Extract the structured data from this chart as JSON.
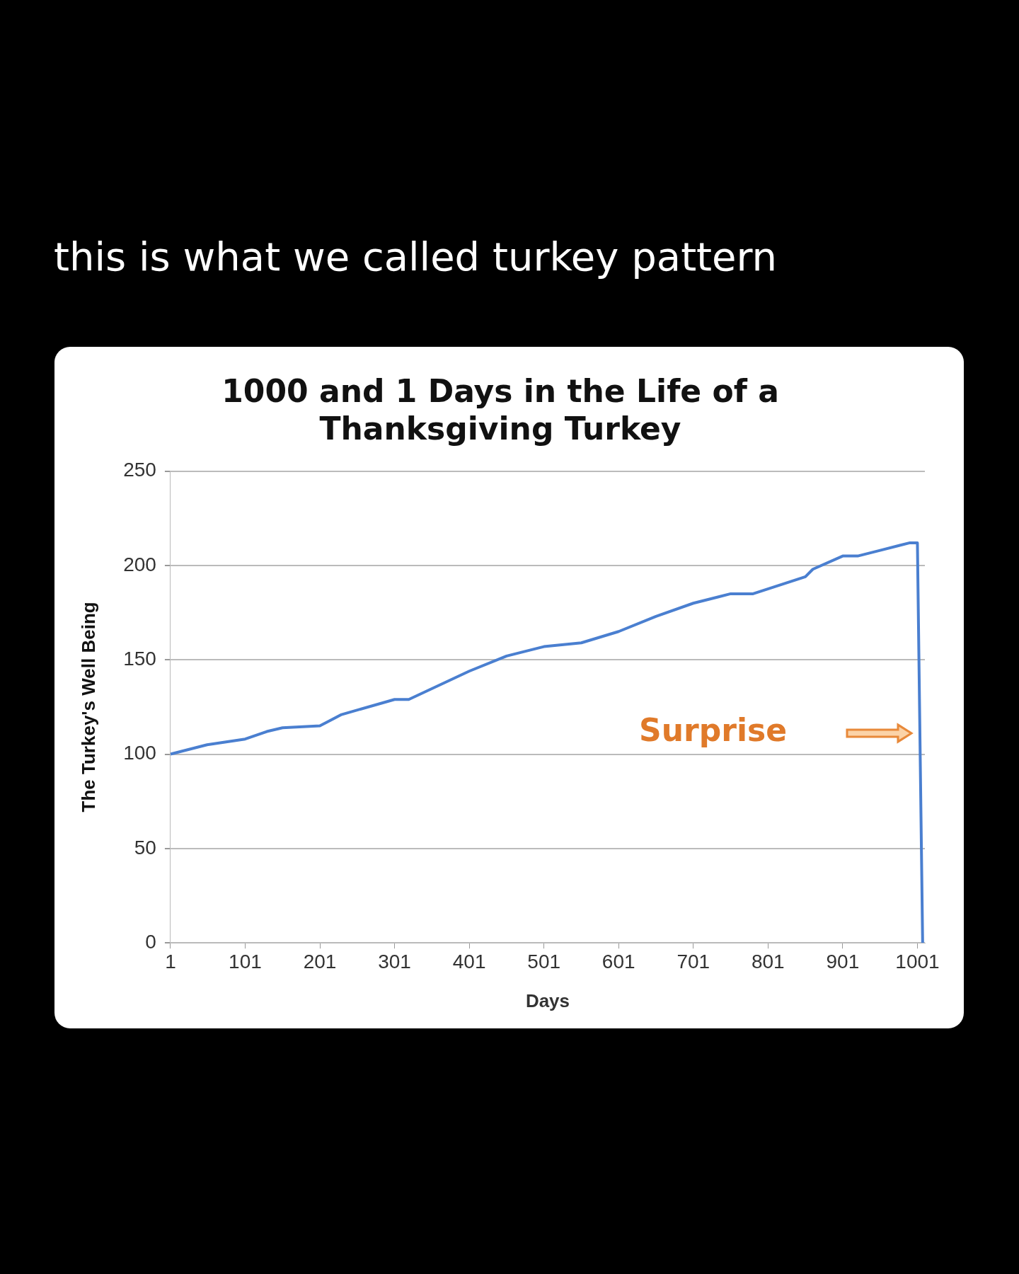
{
  "chart_data": {
    "type": "line",
    "title": "1000 and 1 Days in the Life of a\nThanksgiving Turkey",
    "xlabel": "Days",
    "ylabel": "The Turkey's Well Being",
    "annotations": [
      "this is what we called turkey pattern",
      "Surprise"
    ],
    "series": [
      {
        "color": "#4a7fd0",
        "x": [
          1,
          50,
          101,
          130,
          151,
          201,
          230,
          301,
          320,
          401,
          451,
          501,
          551,
          601,
          651,
          701,
          751,
          781,
          851,
          861,
          901,
          921,
          951,
          991,
          1001,
          1008
        ],
        "values": [
          100,
          105,
          108,
          112,
          114,
          115,
          121,
          129,
          129,
          144,
          152,
          157,
          159,
          165,
          173,
          180,
          185,
          185,
          194,
          198,
          205,
          205,
          208,
          212,
          212,
          0
        ]
      }
    ],
    "xlim": [
      1,
      1011
    ],
    "xticks": [
      1,
      101,
      201,
      301,
      401,
      501,
      601,
      701,
      801,
      901,
      1001
    ],
    "ylim": [
      0,
      250
    ],
    "yticks": [
      0,
      50,
      100,
      150,
      200,
      250
    ],
    "grid": "y",
    "legend": false,
    "marker": "none",
    "line_style": "solid"
  }
}
